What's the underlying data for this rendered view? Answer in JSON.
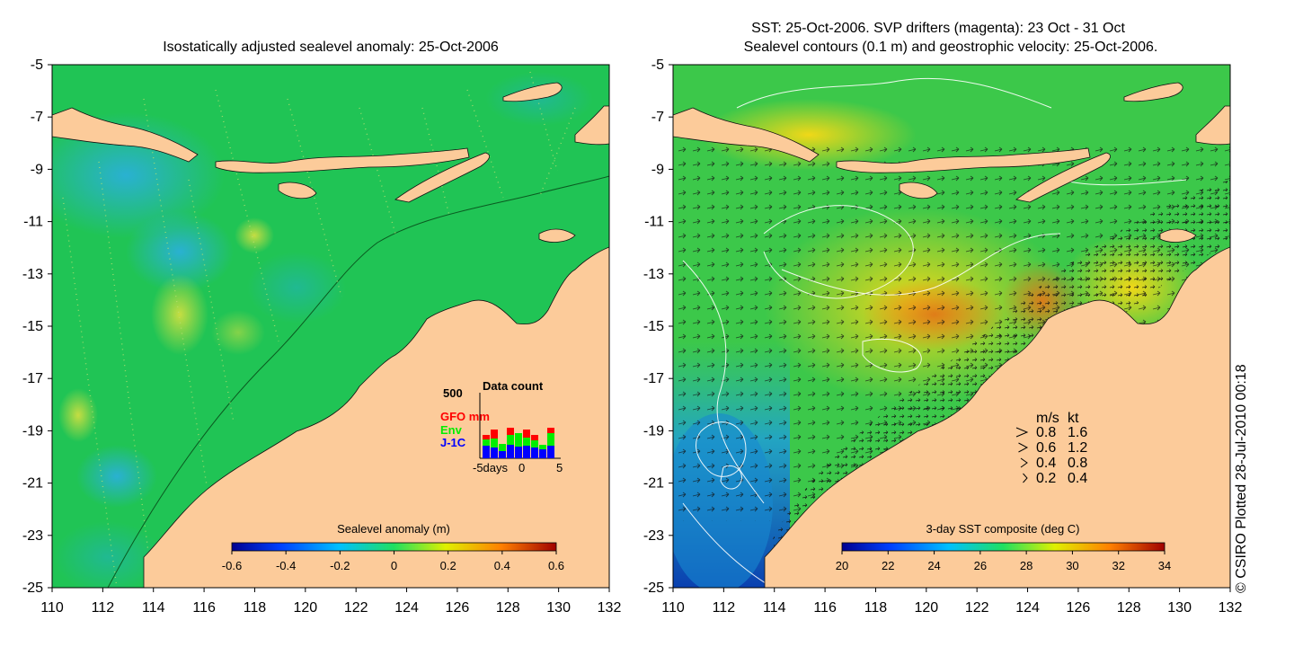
{
  "left_panel": {
    "title": "Isostatically adjusted sealevel anomaly: 25-Oct-2006",
    "x_ticks": [
      "110",
      "112",
      "114",
      "116",
      "118",
      "120",
      "122",
      "124",
      "126",
      "128",
      "130",
      "132"
    ],
    "y_ticks": [
      "-5",
      "-7",
      "-9",
      "-11",
      "-13",
      "-15",
      "-17",
      "-19",
      "-21",
      "-23",
      "-25"
    ],
    "colorbar": {
      "label": "Sealevel anomaly (m)",
      "ticks": [
        "-0.6",
        "-0.4",
        "-0.2",
        "0",
        "0.2",
        "0.4",
        "0.6"
      ],
      "range": [
        -0.6,
        0.6
      ]
    },
    "data_count": {
      "title": "Data count",
      "ymax_label": "500",
      "legend": [
        {
          "name": "GFO mm",
          "color": "#ff0000"
        },
        {
          "name": "Env",
          "color": "#00ee00"
        },
        {
          "name": "J-1C",
          "color": "#0000ff"
        }
      ],
      "x_ticks": [
        "-5days",
        "0",
        "5"
      ]
    }
  },
  "right_panel": {
    "title_line1": "SST: 25-Oct-2006. SVP drifters (magenta): 23 Oct - 31 Oct",
    "title_line2": "Sealevel contours (0.1 m) and geostrophic velocity: 25-Oct-2006.",
    "x_ticks": [
      "110",
      "112",
      "114",
      "116",
      "118",
      "120",
      "122",
      "124",
      "126",
      "128",
      "130",
      "132"
    ],
    "y_ticks": [
      "-5",
      "-7",
      "-9",
      "-11",
      "-13",
      "-15",
      "-17",
      "-19",
      "-21",
      "-23",
      "-25"
    ],
    "colorbar": {
      "label": "3-day SST composite (deg C)",
      "ticks": [
        "20",
        "22",
        "24",
        "26",
        "28",
        "30",
        "32",
        "34"
      ],
      "range": [
        20,
        34
      ]
    },
    "velocity_legend": {
      "header_ms": "m/s",
      "header_kt": "kt",
      "rows": [
        {
          "ms": "0.8",
          "kt": "1.6"
        },
        {
          "ms": "0.6",
          "kt": "1.2"
        },
        {
          "ms": "0.4",
          "kt": "0.8"
        },
        {
          "ms": "0.2",
          "kt": "0.4"
        }
      ]
    }
  },
  "credit": "© CSIRO Plotted 28-Jul-2010 00:18",
  "colors": {
    "land": "#fccb9a",
    "ocean_base": "#1fc456",
    "ocean_blue": "#2aa8c8",
    "sst_warm": "#f0d010",
    "sst_hot": "#e08010",
    "sst_cool": "#1080d0"
  }
}
